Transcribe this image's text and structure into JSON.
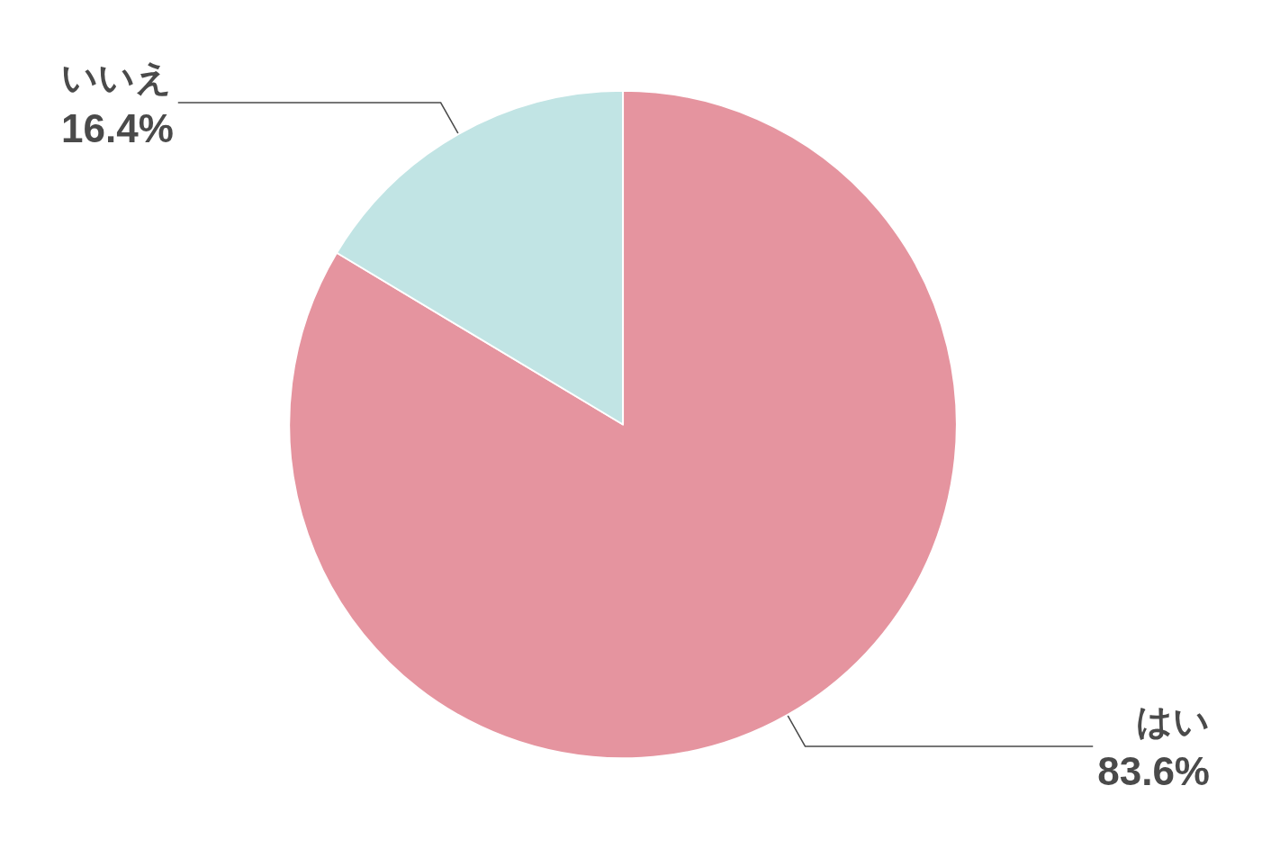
{
  "chart_data": {
    "type": "pie",
    "categories": [
      "はい",
      "いいえ"
    ],
    "values": [
      83.6,
      16.4
    ],
    "colors": [
      "#e5949f",
      "#c1e4e4"
    ],
    "value_labels": [
      "83.6%",
      "16.4%"
    ]
  }
}
